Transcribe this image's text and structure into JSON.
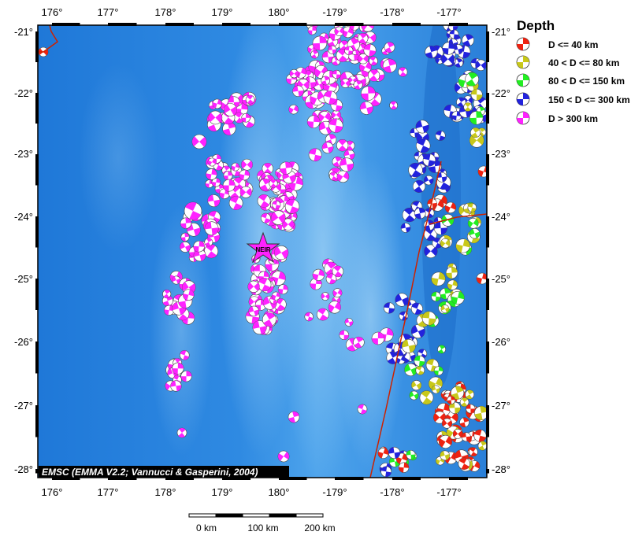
{
  "map": {
    "lon_ticks": [
      "176°",
      "177°",
      "178°",
      "179°",
      "180°",
      "-179°",
      "-178°",
      "-177°"
    ],
    "lat_ticks": [
      "-21°",
      "-22°",
      "-23°",
      "-24°",
      "-25°",
      "-26°",
      "-27°",
      "-28°"
    ],
    "event_label": "NEIR",
    "credit": "EMSC (EMMA V2.2; Vannucci & Gasperini, 2004)",
    "ocean_color": "#2f86e0",
    "event_color": "#ff22ff"
  },
  "legend": {
    "title": "Depth",
    "items": [
      {
        "label": "D <= 40 km",
        "color": "#ee2211"
      },
      {
        "label": "40 < D <= 80 km",
        "color": "#c8c81a"
      },
      {
        "label": "80 < D <= 150 km",
        "color": "#22ee22"
      },
      {
        "label": "150 < D <= 300 km",
        "color": "#2222dd"
      },
      {
        "label": "D > 300 km",
        "color": "#ff22ff"
      }
    ]
  },
  "scale_bar": {
    "labels": [
      "0 km",
      "100 km",
      "200 km"
    ]
  }
}
